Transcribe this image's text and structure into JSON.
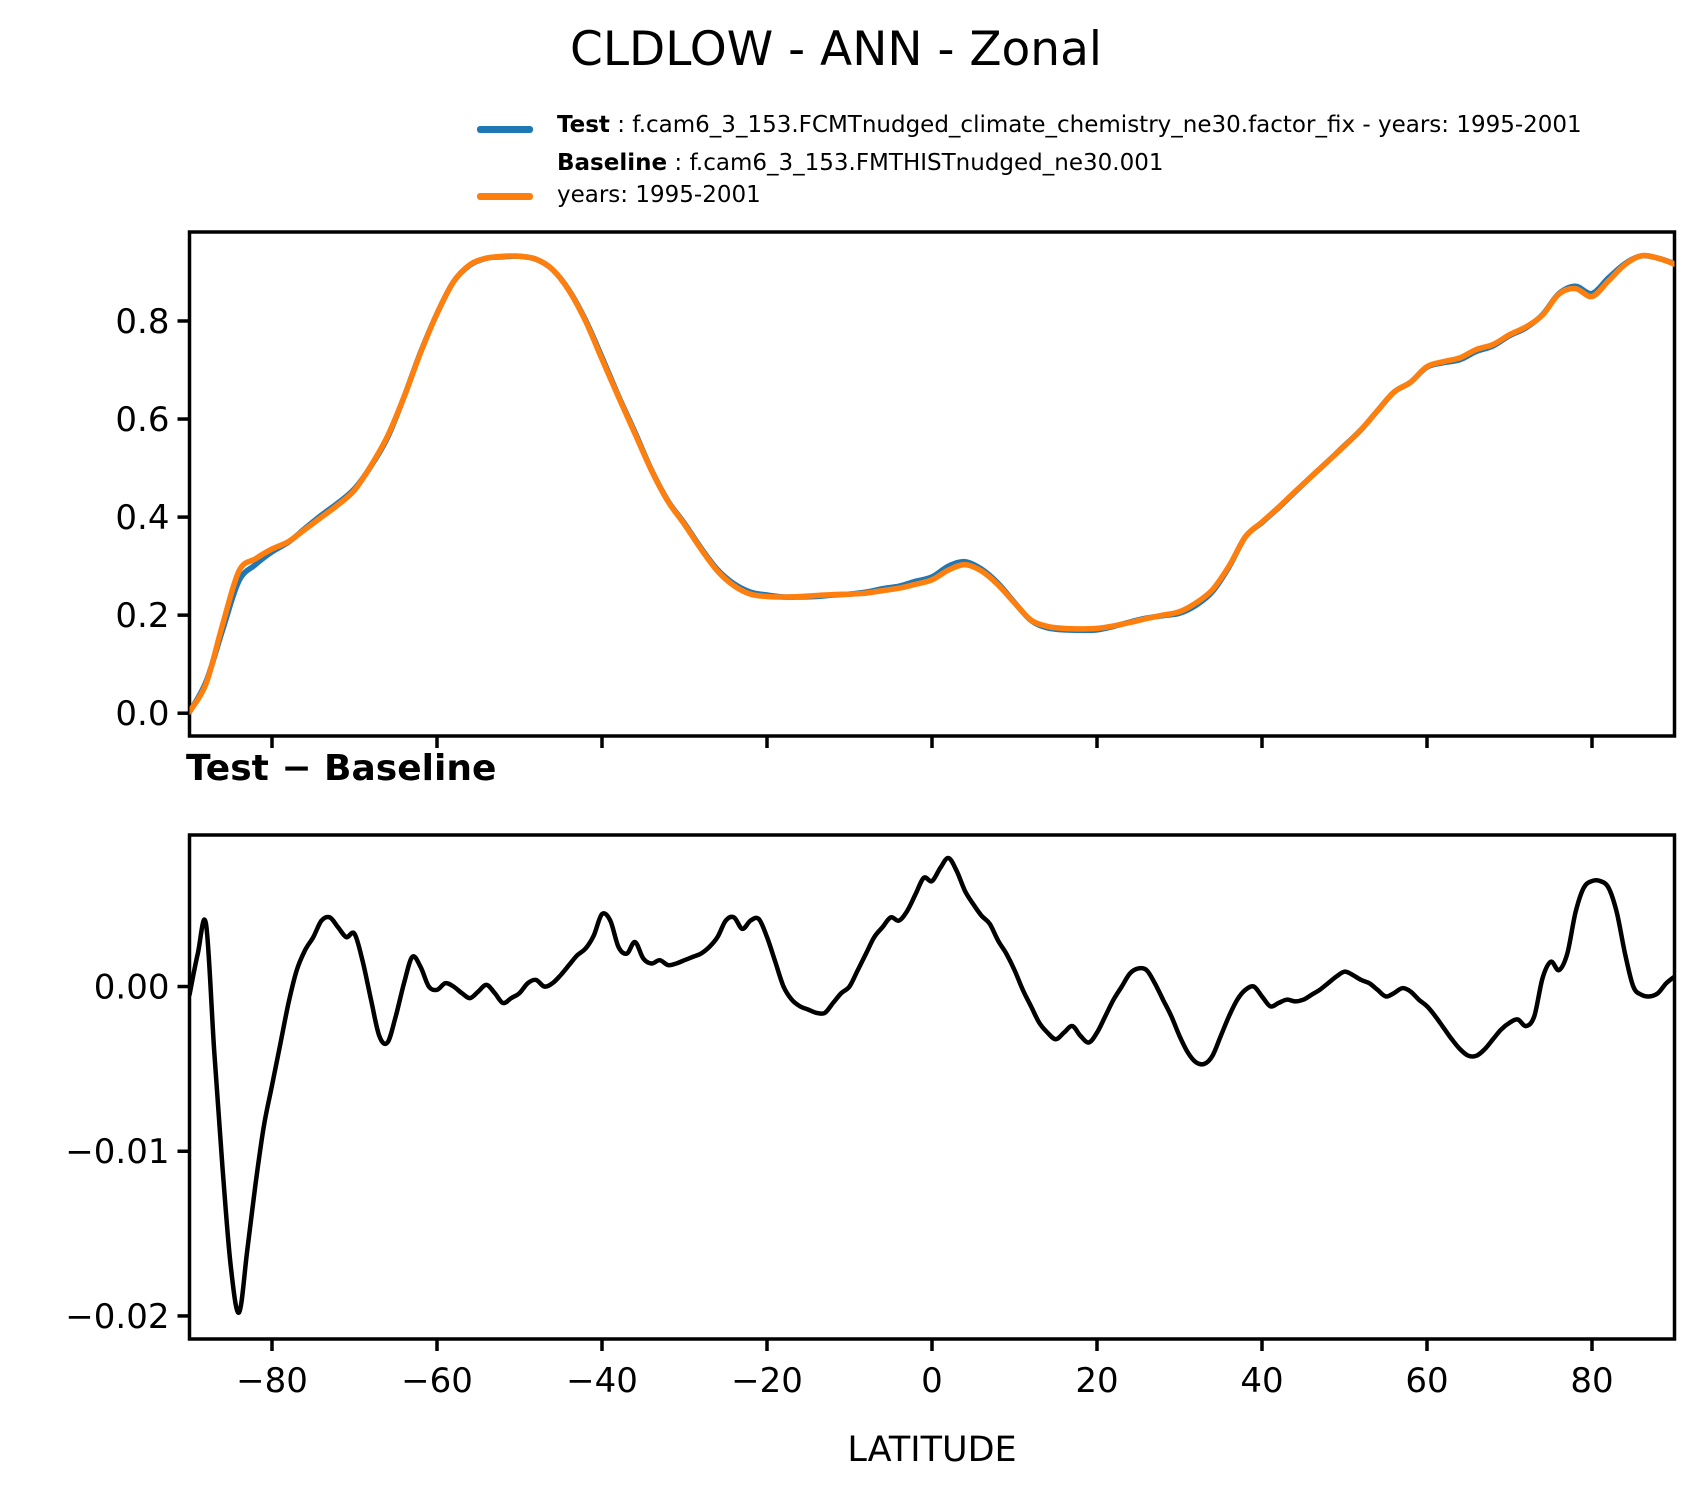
{
  "chart_data": {
    "type": "line",
    "title": "CLDLOW - ANN - Zonal",
    "xlabel": "LATITUDE",
    "grid": false,
    "legend": {
      "position": "top-left",
      "entries": [
        {
          "name": "Test",
          "color": "#1f77b4",
          "text": " : f.cam6_3_153.FCMTnudged_climate_chemistry_ne30.factor_fix - years: 1995-2001"
        },
        {
          "name": "Baseline",
          "color": "#ff7f0e",
          "text": " : f.cam6_3_153.FMTHISTnudged_ne30.001",
          "text2": "years: 1995-2001"
        }
      ]
    },
    "x_ticks": [
      -80,
      -60,
      -40,
      -20,
      0,
      20,
      40,
      60,
      80
    ],
    "x_tick_labels": [
      "−80",
      "−60",
      "−40",
      "−20",
      "0",
      "20",
      "40",
      "60",
      "80"
    ],
    "xlim": [
      -90,
      90
    ],
    "panels": [
      {
        "name": "zonal-mean",
        "title": "",
        "ylim": [
          -0.0465,
          0.9815
        ],
        "yticks": [
          0.0,
          0.2,
          0.4,
          0.6,
          0.8
        ],
        "ytick_labels": [
          "0.0",
          "0.2",
          "0.4",
          "0.6",
          "0.8"
        ],
        "series": [
          {
            "name": "Test",
            "color": "#1f77b4",
            "x": [
              -90,
              -88,
              -86,
              -84,
              -82,
              -80,
              -78,
              -76,
              -74,
              -72,
              -70,
              -68,
              -66,
              -64,
              -62,
              -60,
              -58,
              -56,
              -54,
              -52,
              -50,
              -48,
              -46,
              -44,
              -42,
              -40,
              -38,
              -36,
              -34,
              -32,
              -30,
              -28,
              -26,
              -24,
              -22,
              -20,
              -18,
              -16,
              -14,
              -12,
              -10,
              -8,
              -6,
              -4,
              -2,
              0,
              2,
              4,
              6,
              8,
              10,
              12,
              14,
              16,
              18,
              20,
              22,
              24,
              26,
              28,
              30,
              32,
              34,
              36,
              38,
              40,
              42,
              44,
              46,
              48,
              50,
              52,
              54,
              56,
              58,
              60,
              62,
              64,
              66,
              68,
              70,
              72,
              74,
              76,
              78,
              80,
              82,
              84,
              86,
              88,
              90
            ],
            "y": [
              0.0025,
              0.064,
              0.169,
              0.27,
              0.303,
              0.329,
              0.349,
              0.377,
              0.404,
              0.429,
              0.458,
              0.504,
              0.562,
              0.645,
              0.736,
              0.815,
              0.88,
              0.914,
              0.928,
              0.931,
              0.932,
              0.926,
              0.905,
              0.863,
              0.802,
              0.726,
              0.647,
              0.573,
              0.496,
              0.433,
              0.387,
              0.337,
              0.293,
              0.264,
              0.247,
              0.241,
              0.237,
              0.237,
              0.238,
              0.241,
              0.243,
              0.247,
              0.254,
              0.259,
              0.269,
              0.278,
              0.3,
              0.309,
              0.294,
              0.265,
              0.226,
              0.189,
              0.174,
              0.17,
              0.169,
              0.17,
              0.177,
              0.186,
              0.194,
              0.199,
              0.204,
              0.22,
              0.248,
              0.298,
              0.36,
              0.389,
              0.419,
              0.451,
              0.483,
              0.514,
              0.546,
              0.578,
              0.617,
              0.655,
              0.675,
              0.706,
              0.715,
              0.721,
              0.738,
              0.749,
              0.77,
              0.786,
              0.813,
              0.856,
              0.871,
              0.856,
              0.888,
              0.917,
              0.933,
              0.928,
              0.917
            ]
          },
          {
            "name": "Baseline",
            "color": "#ff7f0e",
            "x": [
              -90,
              -88,
              -86,
              -84,
              -82,
              -80,
              -78,
              -76,
              -74,
              -72,
              -70,
              -68,
              -66,
              -64,
              -62,
              -60,
              -58,
              -56,
              -54,
              -52,
              -50,
              -48,
              -46,
              -44,
              -42,
              -40,
              -38,
              -36,
              -34,
              -32,
              -30,
              -28,
              -26,
              -24,
              -22,
              -20,
              -18,
              -16,
              -14,
              -12,
              -10,
              -8,
              -6,
              -4,
              -2,
              0,
              2,
              4,
              6,
              8,
              10,
              12,
              14,
              16,
              18,
              20,
              22,
              24,
              26,
              28,
              30,
              32,
              34,
              36,
              38,
              40,
              42,
              44,
              46,
              48,
              50,
              52,
              54,
              56,
              58,
              60,
              62,
              64,
              66,
              68,
              70,
              72,
              74,
              76,
              78,
              80,
              82,
              84,
              86,
              88,
              90
            ],
            "y": [
              0.003,
              0.06,
              0.18,
              0.29,
              0.315,
              0.335,
              0.35,
              0.375,
              0.4,
              0.425,
              0.455,
              0.505,
              0.565,
              0.645,
              0.735,
              0.815,
              0.88,
              0.915,
              0.928,
              0.932,
              0.932,
              0.926,
              0.905,
              0.862,
              0.8,
              0.722,
              0.645,
              0.57,
              0.495,
              0.432,
              0.385,
              0.335,
              0.29,
              0.26,
              0.243,
              0.238,
              0.237,
              0.238,
              0.24,
              0.242,
              0.243,
              0.245,
              0.25,
              0.255,
              0.263,
              0.272,
              0.292,
              0.303,
              0.29,
              0.262,
              0.225,
              0.19,
              0.177,
              0.173,
              0.172,
              0.173,
              0.178,
              0.185,
              0.193,
              0.2,
              0.207,
              0.225,
              0.252,
              0.3,
              0.36,
              0.39,
              0.42,
              0.452,
              0.483,
              0.514,
              0.545,
              0.578,
              0.617,
              0.655,
              0.675,
              0.707,
              0.717,
              0.725,
              0.742,
              0.752,
              0.772,
              0.788,
              0.812,
              0.855,
              0.866,
              0.85,
              0.882,
              0.915,
              0.933,
              0.928,
              0.916
            ]
          }
        ]
      },
      {
        "name": "difference",
        "title": "Test − Baseline",
        "ylim": [
          -0.0214,
          0.0092
        ],
        "yticks": [
          0.0,
          -0.01,
          -0.02
        ],
        "ytick_labels": [
          "0.00",
          "−0.01",
          "−0.02"
        ],
        "series": [
          {
            "name": "Test − Baseline",
            "color": "#000000",
            "x": [
              -90,
              -89,
              -88,
              -87,
              -86,
              -85,
              -84,
              -83,
              -82,
              -81,
              -80,
              -79,
              -78,
              -77,
              -76,
              -75,
              -74,
              -73,
              -72,
              -71,
              -70,
              -69,
              -68,
              -67,
              -66,
              -65,
              -64,
              -63,
              -62,
              -61,
              -60,
              -59,
              -58,
              -57,
              -56,
              -55,
              -54,
              -53,
              -52,
              -51,
              -50,
              -49,
              -48,
              -47,
              -46,
              -45,
              -44,
              -43,
              -42,
              -41,
              -40,
              -39,
              -38,
              -37,
              -36,
              -35,
              -34,
              -33,
              -32,
              -31,
              -30,
              -29,
              -28,
              -27,
              -26,
              -25,
              -24,
              -23,
              -22,
              -21,
              -20,
              -19,
              -18,
              -17,
              -16,
              -15,
              -14,
              -13,
              -12,
              -11,
              -10,
              -9,
              -8,
              -7,
              -6,
              -5,
              -4,
              -3,
              -2,
              -1,
              0,
              1,
              2,
              3,
              4,
              5,
              6,
              7,
              8,
              9,
              10,
              11,
              12,
              13,
              14,
              15,
              16,
              17,
              18,
              19,
              20,
              21,
              22,
              23,
              24,
              25,
              26,
              27,
              28,
              29,
              30,
              31,
              32,
              33,
              34,
              35,
              36,
              37,
              38,
              39,
              40,
              41,
              42,
              43,
              44,
              45,
              46,
              47,
              48,
              49,
              50,
              51,
              52,
              53,
              54,
              55,
              56,
              57,
              58,
              59,
              60,
              61,
              62,
              63,
              64,
              65,
              66,
              67,
              68,
              69,
              70,
              71,
              72,
              73,
              74,
              75,
              76,
              77,
              78,
              79,
              80,
              81,
              82,
              83,
              84,
              85,
              86,
              87,
              88,
              89,
              90
            ],
            "y": [
              -0.0005,
              0.002,
              0.0038,
              -0.004,
              -0.011,
              -0.017,
              -0.0198,
              -0.016,
              -0.012,
              -0.0085,
              -0.006,
              -0.0035,
              -0.001,
              0.001,
              0.0022,
              0.003,
              0.004,
              0.0042,
              0.0036,
              0.003,
              0.0032,
              0.0015,
              -0.0008,
              -0.003,
              -0.0034,
              -0.0018,
              0.0002,
              0.0018,
              0.0012,
              0.0,
              -0.0002,
              0.0002,
              0.0,
              -0.0004,
              -0.0007,
              -0.0003,
              0.0001,
              -0.0004,
              -0.001,
              -0.0007,
              -0.0004,
              0.0002,
              0.0004,
              0.0,
              0.0002,
              0.0007,
              0.0013,
              0.0019,
              0.0023,
              0.0031,
              0.0044,
              0.004,
              0.0024,
              0.002,
              0.0027,
              0.0017,
              0.0014,
              0.0016,
              0.0013,
              0.0014,
              0.0016,
              0.0018,
              0.002,
              0.0024,
              0.003,
              0.004,
              0.0042,
              0.0035,
              0.004,
              0.0041,
              0.003,
              0.0015,
              0.0,
              -0.0008,
              -0.0012,
              -0.0014,
              -0.0016,
              -0.0016,
              -0.001,
              -0.0004,
              0.0,
              0.001,
              0.002,
              0.003,
              0.0036,
              0.0042,
              0.004,
              0.0046,
              0.0056,
              0.0066,
              0.0064,
              0.0072,
              0.0078,
              0.007,
              0.0058,
              0.005,
              0.0043,
              0.0038,
              0.0028,
              0.002,
              0.001,
              -0.0002,
              -0.0012,
              -0.0022,
              -0.0028,
              -0.0032,
              -0.0028,
              -0.0024,
              -0.003,
              -0.0034,
              -0.0028,
              -0.0018,
              -0.0008,
              0.0,
              0.0008,
              0.0011,
              0.001,
              0.0002,
              -0.0008,
              -0.0018,
              -0.003,
              -0.004,
              -0.0046,
              -0.0047,
              -0.0042,
              -0.003,
              -0.0018,
              -0.0008,
              -0.0002,
              0.0,
              -0.0006,
              -0.0012,
              -0.001,
              -0.0008,
              -0.0009,
              -0.0008,
              -0.0005,
              -0.0002,
              0.0002,
              0.0006,
              0.0009,
              0.0007,
              0.0004,
              0.0002,
              -0.0002,
              -0.0006,
              -0.0004,
              -0.0001,
              -0.0003,
              -0.0008,
              -0.0012,
              -0.0018,
              -0.0025,
              -0.0032,
              -0.0038,
              -0.0042,
              -0.0042,
              -0.0038,
              -0.0032,
              -0.0026,
              -0.0022,
              -0.002,
              -0.0024,
              -0.0018,
              0.0005,
              0.0015,
              0.001,
              0.002,
              0.0045,
              0.006,
              0.0064,
              0.0064,
              0.006,
              0.0045,
              0.002,
              0.0,
              -0.0005,
              -0.0006,
              -0.0004,
              0.0002,
              0.0006
            ]
          }
        ]
      }
    ]
  }
}
